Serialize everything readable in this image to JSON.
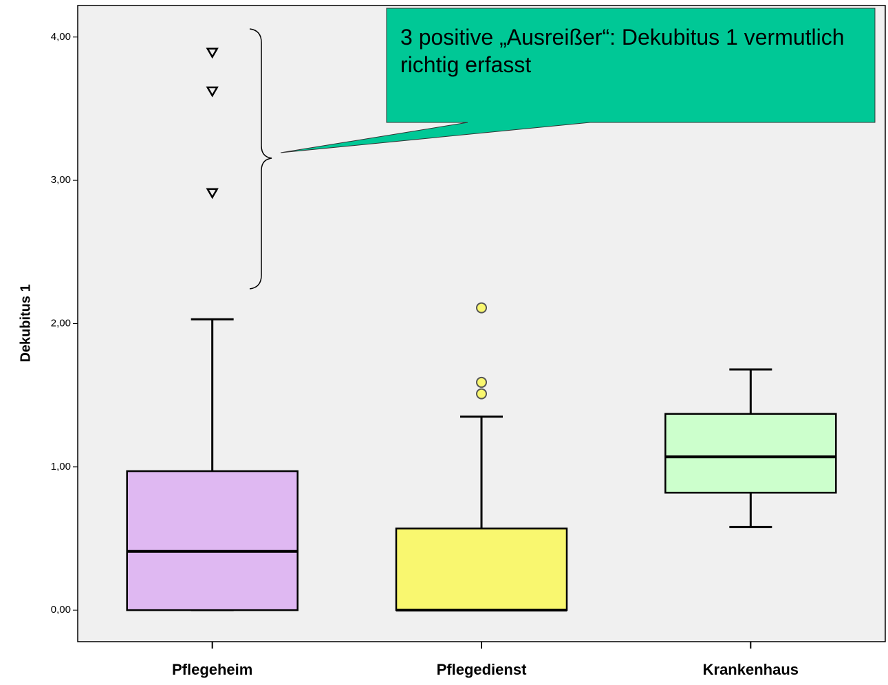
{
  "chart_data": {
    "type": "box",
    "ylabel": "Dekubitus 1",
    "annotation": "3 positive „Ausreißer“: Dekubitus 1 vermutlich richtig erfasst",
    "categories": [
      "Pflegeheim",
      "Pflegedienst",
      "Krankenhaus"
    ],
    "boxes": [
      {
        "min": 0,
        "q1": 0,
        "median": 0.41,
        "q3": 0.97,
        "max": 2.03,
        "outliers": [
          3.89,
          3.62,
          2.91
        ],
        "outlier_marker": "triangle",
        "color": "#dfb8f2"
      },
      {
        "min": 0,
        "q1": 0,
        "median": 0,
        "q3": 0.57,
        "max": 1.35,
        "outliers": [
          2.11,
          1.59,
          1.51
        ],
        "outlier_marker": "circle",
        "color": "#f9f76f"
      },
      {
        "min": 0.58,
        "q1": 0.82,
        "median": 1.07,
        "q3": 1.37,
        "max": 1.68,
        "outliers": [],
        "outlier_marker": "circle",
        "color": "#ccffcc"
      }
    ],
    "ylim": [
      -0.22,
      4.22
    ],
    "yticks": [
      {
        "value": 0,
        "label": "0,00"
      },
      {
        "value": 1,
        "label": "1,00"
      },
      {
        "value": 2,
        "label": "2,00"
      },
      {
        "value": 3,
        "label": "3,00"
      },
      {
        "value": 4,
        "label": "4,00"
      }
    ]
  }
}
